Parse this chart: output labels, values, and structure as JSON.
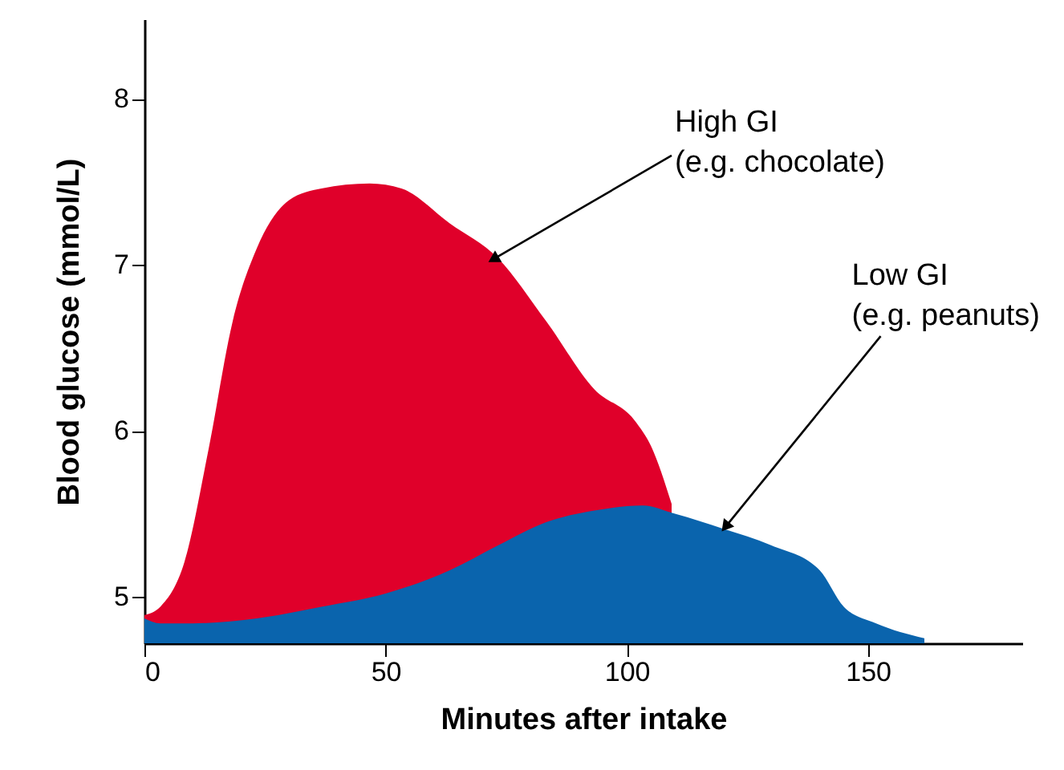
{
  "chart_data": {
    "type": "area",
    "xlabel": "Minutes after intake",
    "ylabel": "Blood glucose (mmol/L)",
    "xlim": [
      0,
      182
    ],
    "ylim": [
      4.72,
      8.48
    ],
    "xticks": [
      0,
      50,
      100,
      150
    ],
    "yticks": [
      5,
      6,
      7,
      8
    ],
    "grid": false,
    "series": [
      {
        "color": "#e0002a",
        "x": [
          0,
          3.3,
          8.3,
          13.3,
          18.3,
          23.3,
          30,
          36.7,
          46.7,
          53.3,
          63.3,
          73.3,
          83.3,
          93.3,
          101.7,
          105,
          109.3
        ],
        "values": [
          4.89,
          4.94,
          5.21,
          5.89,
          6.66,
          7.1,
          7.39,
          7.46,
          7.49,
          7.46,
          7.25,
          7.04,
          6.66,
          6.25,
          6.06,
          5.91,
          5.56
        ]
      },
      {
        "color": "#0a64ad",
        "x": [
          0,
          3.3,
          10,
          23.3,
          36.7,
          50,
          63.3,
          73.3,
          83.3,
          93.3,
          103.3,
          110,
          120,
          130,
          140,
          145,
          151.7,
          161.7
        ],
        "values": [
          4.87,
          4.84,
          4.84,
          4.87,
          4.94,
          5.02,
          5.16,
          5.31,
          5.45,
          5.52,
          5.55,
          5.5,
          5.41,
          5.31,
          5.16,
          4.94,
          4.84,
          4.75
        ]
      }
    ],
    "annotations": [
      {
        "text": "High GI\n(e.g. chocolate)",
        "x": 72.7,
        "y": 7.04
      },
      {
        "text": "Low GI\n(e.g. peanuts)",
        "x": 120.7,
        "y": 5.43
      }
    ]
  }
}
